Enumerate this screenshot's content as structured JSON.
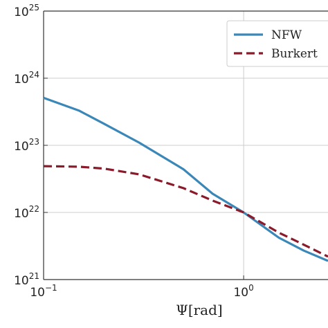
{
  "chart_data": {
    "type": "line",
    "x_label": "Ψ[rad]",
    "x": [
      0.1,
      0.15,
      0.2,
      0.3,
      0.5,
      0.7,
      1,
      1.5,
      2,
      2.64
    ],
    "series": [
      {
        "name": "NFW",
        "color": "#3a87b8",
        "dash": false,
        "values": [
          5.1e+23,
          3.3e+23,
          2.1e+23,
          1.1e+23,
          4.4e+22,
          1.9e+22,
          1e+22,
          4.2e+21,
          2.7e+21,
          1.9e+21
        ]
      },
      {
        "name": "Burkert",
        "color": "#8b1a2b",
        "dash": true,
        "values": [
          4.9e+22,
          4.8e+22,
          4.5e+22,
          3.7e+22,
          2.3e+22,
          1.5e+22,
          1e+22,
          5e+21,
          3.3e+21,
          2.2e+21
        ]
      }
    ],
    "xlim": [
      0.1,
      2.64
    ],
    "ylim": [
      1e+21,
      1e+25
    ],
    "xticks": [
      {
        "value": 0.1,
        "label": "10",
        "exponent": "−1"
      },
      {
        "value": 1,
        "label": "10",
        "exponent": "0"
      }
    ],
    "yticks": [
      {
        "value": 1e+21,
        "label": "10",
        "exponent": "21"
      },
      {
        "value": 1e+22,
        "label": "10",
        "exponent": "22"
      },
      {
        "value": 1e+23,
        "label": "10",
        "exponent": "23"
      },
      {
        "value": 1e+24,
        "label": "10",
        "exponent": "24"
      },
      {
        "value": 1e+25,
        "label": "10",
        "exponent": "25"
      }
    ],
    "log_x": true,
    "log_y": true,
    "grid": true,
    "legend": "upper right"
  }
}
